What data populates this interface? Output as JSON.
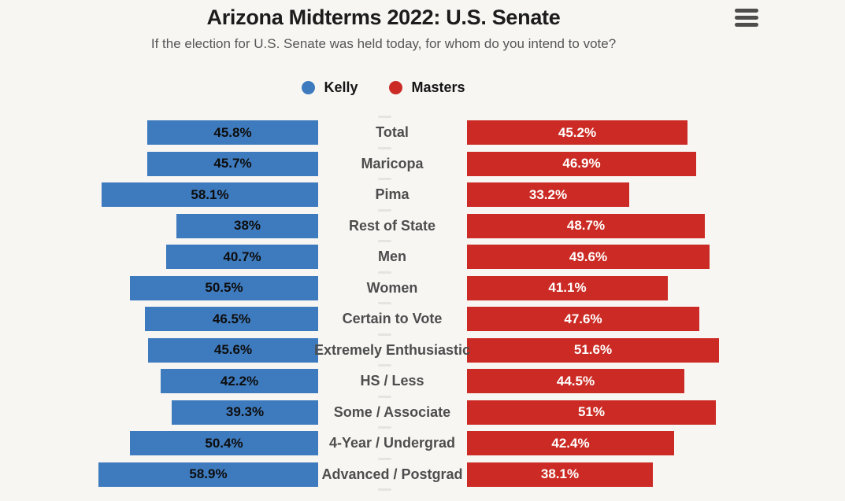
{
  "header": {
    "title": "Arizona Midterms 2022: U.S. Senate",
    "subtitle": "If the election for U.S. Senate was held today, for whom do you intend to vote?"
  },
  "menu": {
    "icon": "hamburger-icon"
  },
  "legend": [
    {
      "label": "Kelly",
      "color": "#3e7bbe"
    },
    {
      "label": "Masters",
      "color": "#cb2b24"
    }
  ],
  "chart_data": {
    "type": "bar",
    "variant": "diverging-horizontal",
    "title": "Arizona Midterms 2022: U.S. Senate",
    "subtitle": "If the election for U.S. Senate was held today, for whom do you intend to vote?",
    "categories": [
      "Total",
      "Maricopa",
      "Pima",
      "Rest of State",
      "Men",
      "Women",
      "Certain to Vote",
      "Extremely Enthusiastic",
      "HS / Less",
      "Some / Associate",
      "4-Year / Undergrad",
      "Advanced / Postgrad"
    ],
    "series": [
      {
        "name": "Kelly",
        "side": "left",
        "color": "#3e7bbe",
        "label_color": "#0d0d0d",
        "values": [
          45.8,
          45.7,
          58.1,
          38,
          40.7,
          50.5,
          46.5,
          45.6,
          42.2,
          39.3,
          50.4,
          58.9
        ]
      },
      {
        "name": "Masters",
        "side": "right",
        "color": "#cb2b24",
        "label_color": "#ffffff",
        "values": [
          45.2,
          46.9,
          33.2,
          48.7,
          49.6,
          41.1,
          47.6,
          51.6,
          44.5,
          51,
          42.4,
          38.1
        ]
      }
    ],
    "value_suffix": "%",
    "legend_position": "top-center",
    "grid": "center-dashed-axis",
    "xlabel": "",
    "ylabel": ""
  },
  "colors": {
    "background": "#f7f6f3",
    "kelly_blue": "#3e7bbe",
    "masters_red": "#cb2b24",
    "category_label": "#4d4d4d",
    "title": "#1c1c1c",
    "subtitle": "#565656",
    "menu_icon": "#4f4d4b",
    "axis_dash": "#e6e4e0"
  }
}
